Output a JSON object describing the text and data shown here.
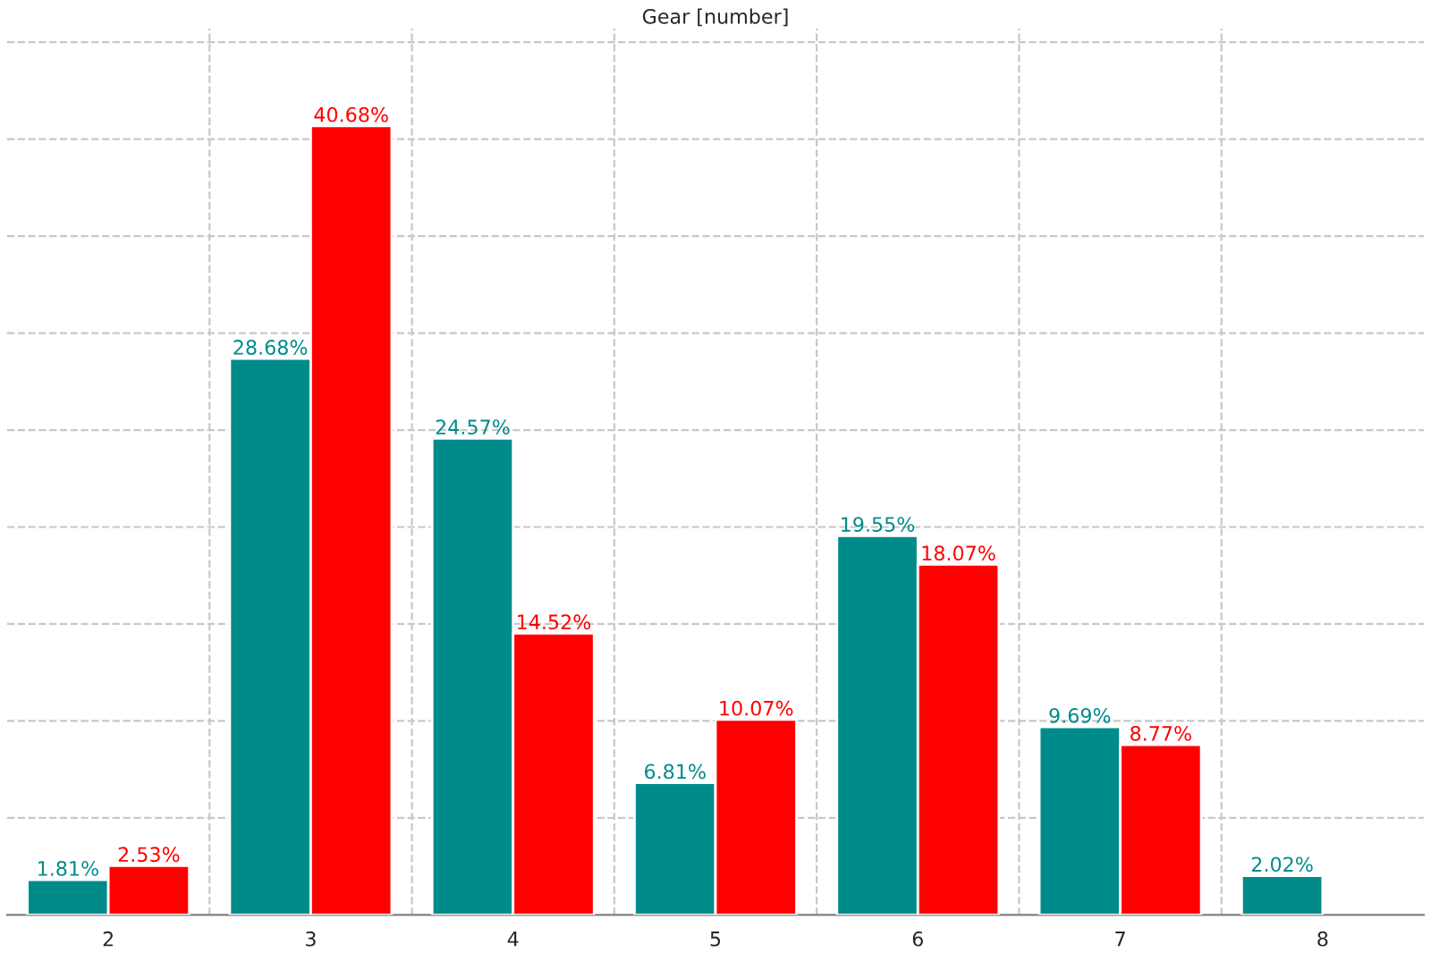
{
  "chart_data": {
    "type": "bar",
    "title": "Gear [number]",
    "categories": [
      "2",
      "3",
      "4",
      "5",
      "6",
      "7",
      "8"
    ],
    "series": [
      {
        "color": "#008b8b",
        "values": [
          1.81,
          28.68,
          24.57,
          6.81,
          19.55,
          9.69,
          2.02
        ],
        "value_labels": [
          "1.81%",
          "28.68%",
          "24.57%",
          "6.81%",
          "19.55%",
          "9.69%",
          "2.02%"
        ]
      },
      {
        "color": "#ff0000",
        "values": [
          2.53,
          40.68,
          14.52,
          10.07,
          18.07,
          8.77,
          null
        ],
        "value_labels": [
          "2.53%",
          "40.68%",
          "14.52%",
          "10.07%",
          "18.07%",
          "8.77%",
          null
        ]
      }
    ],
    "ylim": [
      0,
      45.7
    ],
    "yticks": [
      {
        "value": 5,
        "label": null
      },
      {
        "value": 10,
        "label": null
      },
      {
        "value": 15,
        "label": null
      },
      {
        "value": 20,
        "label": null
      },
      {
        "value": 25,
        "label": null
      },
      {
        "value": 30,
        "label": null
      },
      {
        "value": 35,
        "label": null
      },
      {
        "value": 40,
        "label": null
      },
      {
        "value": 45,
        "label": null
      }
    ],
    "tick_labels": "x",
    "grid": true,
    "legend": false
  }
}
